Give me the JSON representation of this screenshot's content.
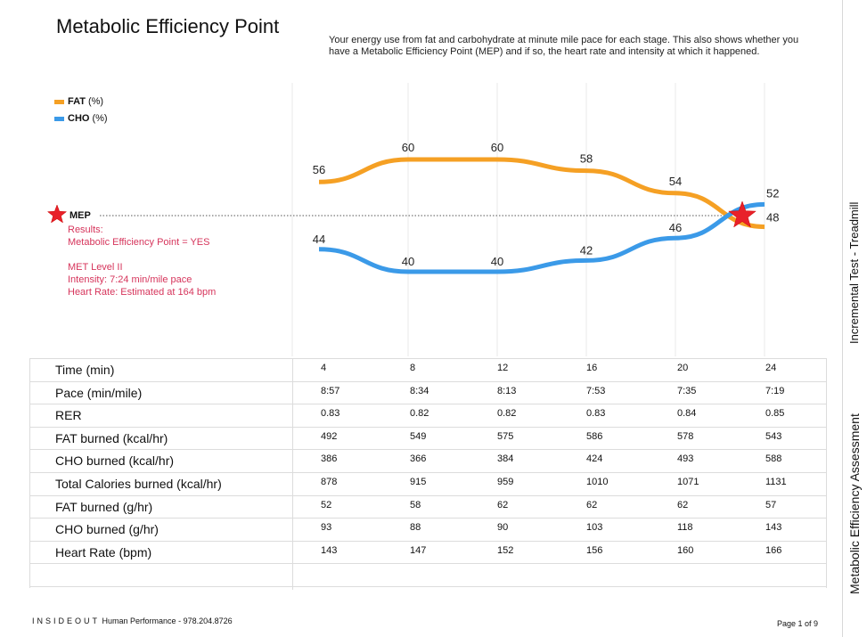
{
  "header": {
    "title": "Metabolic Efficiency Point",
    "description": "Your energy use from fat and carbohydrate at minute mile pace for each stage. This also shows whether you have a Metabolic Efficiency Point (MEP) and if so, the heart rate and intensity at which it happened."
  },
  "legend": [
    {
      "name": "FAT",
      "unit": "(%)",
      "color": "#f5a024"
    },
    {
      "name": "CHO",
      "unit": "(%)",
      "color": "#3b9ae8"
    }
  ],
  "mep": {
    "label": "MEP",
    "icon": "star-icon",
    "results": [
      "Results:",
      "Metabolic Efficiency Point = YES",
      "",
      "MET Level II",
      "Intensity: 7:24 min/mile pace",
      "Heart Rate: Estimated at 164 bpm"
    ]
  },
  "chart_data": {
    "type": "line",
    "x": [
      4,
      8,
      12,
      16,
      20,
      24
    ],
    "series": [
      {
        "name": "FAT",
        "unit": "(%)",
        "color": "#f5a024",
        "values": [
          56,
          60,
          60,
          58,
          54,
          48
        ]
      },
      {
        "name": "CHO",
        "unit": "(%)",
        "color": "#3b9ae8",
        "values": [
          44,
          40,
          40,
          42,
          46,
          52
        ]
      }
    ],
    "crossover": {
      "x": 23,
      "y": 50,
      "label": "MEP"
    },
    "ylim": [
      25,
      75
    ],
    "grid": true,
    "legend_position": "top-left"
  },
  "table": {
    "rows": [
      {
        "label": "Time (min)",
        "values": [
          "4",
          "8",
          "12",
          "16",
          "20",
          "24"
        ]
      },
      {
        "label": "Pace (min/mile)",
        "values": [
          "8:57",
          "8:34",
          "8:13",
          "7:53",
          "7:35",
          "7:19"
        ]
      },
      {
        "label": "RER",
        "values": [
          "0.83",
          "0.82",
          "0.82",
          "0.83",
          "0.84",
          "0.85"
        ]
      },
      {
        "label": "FAT burned (kcal/hr)",
        "values": [
          "492",
          "549",
          "575",
          "586",
          "578",
          "543"
        ]
      },
      {
        "label": "CHO burned (kcal/hr)",
        "values": [
          "386",
          "366",
          "384",
          "424",
          "493",
          "588"
        ]
      },
      {
        "label": "Total Calories burned (kcal/hr)",
        "values": [
          "878",
          "915",
          "959",
          "1010",
          "1071",
          "1131"
        ]
      },
      {
        "label": "FAT burned (g/hr)",
        "values": [
          "52",
          "58",
          "62",
          "62",
          "62",
          "57"
        ]
      },
      {
        "label": "CHO burned (g/hr)",
        "values": [
          "93",
          "88",
          "90",
          "103",
          "118",
          "143"
        ]
      },
      {
        "label": "Heart Rate (bpm)",
        "values": [
          "143",
          "147",
          "152",
          "156",
          "160",
          "166"
        ]
      },
      {
        "label": "",
        "values": [
          "",
          "",
          "",
          "",
          "",
          ""
        ]
      }
    ]
  },
  "sidebar": {
    "test_type": "Incremental Test - Treadmill",
    "assessment": "Metabolic Efficiency Assessment"
  },
  "footer": {
    "brand": "INSIDEOUT",
    "company": "Human Performance - 978.204.8726",
    "page": "Page 1 of 9"
  }
}
